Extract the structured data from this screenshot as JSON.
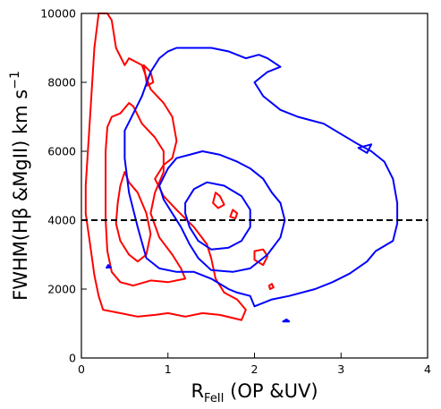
{
  "chart_data": {
    "type": "contour",
    "xlabel": "R",
    "xlabel_sub": "FeII",
    "xlabel_rest": " (OP &UV)",
    "ylabel": "FWHM(Hβ &MgII) km s",
    "ylabel_sup": "−1",
    "xlim": [
      0,
      4
    ],
    "ylim": [
      0,
      10000
    ],
    "xticks": [
      0,
      1,
      2,
      3,
      4
    ],
    "xtick_labels": [
      "0",
      "1",
      "2",
      "3",
      "4"
    ],
    "yticks": [
      0,
      2000,
      4000,
      6000,
      8000,
      10000
    ],
    "ytick_labels": [
      "0",
      "2000",
      "4000",
      "6000",
      "8000",
      "10000"
    ],
    "grid": false,
    "reference_line": {
      "y": 4000,
      "style": "dashed",
      "color": "#000000"
    },
    "colors": {
      "optical": "#ff0000",
      "uv": "#0000ff"
    },
    "series": [
      {
        "color": "#ff0000",
        "level": "outer",
        "points": [
          [
            0.05,
            5000
          ],
          [
            0.1,
            7000
          ],
          [
            0.15,
            9000
          ],
          [
            0.2,
            10000
          ],
          [
            0.3,
            10000
          ],
          [
            0.35,
            9800
          ],
          [
            0.4,
            9000
          ],
          [
            0.5,
            8500
          ],
          [
            0.55,
            8700
          ],
          [
            0.7,
            8500
          ],
          [
            0.8,
            7800
          ],
          [
            0.95,
            7400
          ],
          [
            1.05,
            7000
          ],
          [
            1.1,
            6300
          ],
          [
            1.05,
            5800
          ],
          [
            0.95,
            5600
          ],
          [
            0.85,
            5200
          ],
          [
            0.95,
            4700
          ],
          [
            1.1,
            4300
          ],
          [
            1.3,
            3800
          ],
          [
            1.45,
            3300
          ],
          [
            1.5,
            2900
          ],
          [
            1.55,
            2300
          ],
          [
            1.65,
            1900
          ],
          [
            1.8,
            1700
          ],
          [
            1.9,
            1400
          ],
          [
            1.85,
            1100
          ],
          [
            1.6,
            1250
          ],
          [
            1.4,
            1300
          ],
          [
            1.2,
            1200
          ],
          [
            1.0,
            1300
          ],
          [
            0.85,
            1250
          ],
          [
            0.65,
            1200
          ],
          [
            0.45,
            1300
          ],
          [
            0.25,
            1400
          ],
          [
            0.2,
            1800
          ],
          [
            0.15,
            2400
          ],
          [
            0.1,
            3300
          ],
          [
            0.05,
            4200
          ],
          [
            0.05,
            5000
          ]
        ]
      },
      {
        "color": "#ff0000",
        "level": "middle",
        "points": [
          [
            0.3,
            6700
          ],
          [
            0.35,
            7000
          ],
          [
            0.45,
            7100
          ],
          [
            0.55,
            7400
          ],
          [
            0.6,
            7300
          ],
          [
            0.7,
            6800
          ],
          [
            0.85,
            6400
          ],
          [
            0.95,
            6000
          ],
          [
            0.95,
            5400
          ],
          [
            0.85,
            4800
          ],
          [
            0.8,
            4200
          ],
          [
            0.9,
            3500
          ],
          [
            1.05,
            3000
          ],
          [
            1.15,
            2600
          ],
          [
            1.2,
            2300
          ],
          [
            1.0,
            2200
          ],
          [
            0.8,
            2250
          ],
          [
            0.6,
            2100
          ],
          [
            0.45,
            2200
          ],
          [
            0.35,
            2500
          ],
          [
            0.3,
            3100
          ],
          [
            0.28,
            4000
          ],
          [
            0.28,
            5000
          ],
          [
            0.28,
            6000
          ],
          [
            0.3,
            6700
          ]
        ]
      },
      {
        "color": "#ff0000",
        "level": "inner",
        "points": [
          [
            0.45,
            5000
          ],
          [
            0.5,
            5400
          ],
          [
            0.55,
            5100
          ],
          [
            0.65,
            4800
          ],
          [
            0.75,
            4200
          ],
          [
            0.8,
            3600
          ],
          [
            0.75,
            3000
          ],
          [
            0.65,
            2800
          ],
          [
            0.55,
            3000
          ],
          [
            0.45,
            3400
          ],
          [
            0.4,
            3900
          ],
          [
            0.42,
            4500
          ],
          [
            0.45,
            5000
          ]
        ]
      },
      {
        "color": "#ff0000",
        "level": "island",
        "points": [
          [
            1.55,
            4800
          ],
          [
            1.6,
            4700
          ],
          [
            1.65,
            4450
          ],
          [
            1.58,
            4350
          ],
          [
            1.52,
            4500
          ],
          [
            1.55,
            4800
          ]
        ]
      },
      {
        "color": "#ff0000",
        "level": "island",
        "points": [
          [
            1.75,
            4300
          ],
          [
            1.8,
            4200
          ],
          [
            1.78,
            4050
          ],
          [
            1.72,
            4100
          ],
          [
            1.75,
            4300
          ]
        ]
      },
      {
        "color": "#ff0000",
        "level": "island",
        "points": [
          [
            2.0,
            3100
          ],
          [
            2.1,
            3150
          ],
          [
            2.15,
            2950
          ],
          [
            2.1,
            2700
          ],
          [
            2.0,
            2850
          ],
          [
            2.0,
            3100
          ]
        ]
      },
      {
        "color": "#ff0000",
        "level": "island",
        "points": [
          [
            0.72,
            8500
          ],
          [
            0.8,
            8300
          ],
          [
            0.83,
            8000
          ],
          [
            0.76,
            7900
          ],
          [
            0.72,
            8500
          ]
        ]
      },
      {
        "color": "#ff0000",
        "level": "island",
        "points": [
          [
            2.17,
            2100
          ],
          [
            2.2,
            2150
          ],
          [
            2.22,
            2050
          ],
          [
            2.18,
            2000
          ],
          [
            2.17,
            2100
          ]
        ]
      },
      {
        "color": "#0000ff",
        "level": "outer",
        "points": [
          [
            0.5,
            6600
          ],
          [
            0.6,
            7100
          ],
          [
            0.7,
            7600
          ],
          [
            0.8,
            8300
          ],
          [
            0.9,
            8700
          ],
          [
            1.0,
            8900
          ],
          [
            1.1,
            9000
          ],
          [
            1.3,
            9000
          ],
          [
            1.5,
            9000
          ],
          [
            1.7,
            8900
          ],
          [
            1.9,
            8700
          ],
          [
            2.05,
            8800
          ],
          [
            2.15,
            8700
          ],
          [
            2.3,
            8450
          ],
          [
            2.15,
            8300
          ],
          [
            2.0,
            8000
          ],
          [
            2.1,
            7600
          ],
          [
            2.3,
            7200
          ],
          [
            2.5,
            7000
          ],
          [
            2.65,
            6900
          ],
          [
            2.8,
            6800
          ],
          [
            3.0,
            6500
          ],
          [
            3.2,
            6200
          ],
          [
            3.35,
            6000
          ],
          [
            3.5,
            5700
          ],
          [
            3.6,
            5200
          ],
          [
            3.65,
            4500
          ],
          [
            3.65,
            3900
          ],
          [
            3.6,
            3400
          ],
          [
            3.4,
            3100
          ],
          [
            3.3,
            2800
          ],
          [
            3.1,
            2450
          ],
          [
            2.9,
            2200
          ],
          [
            2.7,
            2000
          ],
          [
            2.4,
            1800
          ],
          [
            2.2,
            1700
          ],
          [
            2.0,
            1500
          ],
          [
            1.95,
            1800
          ],
          [
            1.8,
            1900
          ],
          [
            1.7,
            2000
          ],
          [
            1.5,
            2300
          ],
          [
            1.3,
            2500
          ],
          [
            1.1,
            2500
          ],
          [
            0.9,
            2600
          ],
          [
            0.75,
            2900
          ],
          [
            0.65,
            3800
          ],
          [
            0.55,
            4800
          ],
          [
            0.5,
            5800
          ],
          [
            0.5,
            6600
          ]
        ]
      },
      {
        "color": "#0000ff",
        "level": "middle",
        "points": [
          [
            0.9,
            5000
          ],
          [
            1.0,
            5500
          ],
          [
            1.1,
            5800
          ],
          [
            1.25,
            5900
          ],
          [
            1.4,
            6000
          ],
          [
            1.6,
            5900
          ],
          [
            1.8,
            5700
          ],
          [
            1.95,
            5500
          ],
          [
            2.1,
            5200
          ],
          [
            2.2,
            4800
          ],
          [
            2.3,
            4500
          ],
          [
            2.35,
            4000
          ],
          [
            2.3,
            3500
          ],
          [
            2.15,
            3000
          ],
          [
            1.95,
            2600
          ],
          [
            1.75,
            2500
          ],
          [
            1.5,
            2550
          ],
          [
            1.35,
            2900
          ],
          [
            1.25,
            3300
          ],
          [
            1.15,
            3800
          ],
          [
            1.05,
            4200
          ],
          [
            0.95,
            4600
          ],
          [
            0.9,
            5000
          ]
        ]
      },
      {
        "color": "#0000ff",
        "level": "inner",
        "points": [
          [
            1.2,
            4500
          ],
          [
            1.3,
            4900
          ],
          [
            1.45,
            5100
          ],
          [
            1.65,
            5000
          ],
          [
            1.85,
            4700
          ],
          [
            1.95,
            4300
          ],
          [
            1.95,
            3800
          ],
          [
            1.85,
            3400
          ],
          [
            1.7,
            3200
          ],
          [
            1.5,
            3150
          ],
          [
            1.35,
            3400
          ],
          [
            1.25,
            3800
          ],
          [
            1.2,
            4200
          ],
          [
            1.2,
            4500
          ]
        ]
      },
      {
        "color": "#0000ff",
        "level": "island",
        "points": [
          [
            3.2,
            6100
          ],
          [
            3.35,
            6200
          ],
          [
            3.3,
            5950
          ],
          [
            3.2,
            6100
          ]
        ]
      },
      {
        "color": "#0000ff",
        "level": "island",
        "points": [
          [
            2.33,
            1060
          ],
          [
            2.37,
            1120
          ],
          [
            2.4,
            1060
          ],
          [
            2.33,
            1060
          ]
        ]
      },
      {
        "color": "#0000ff",
        "level": "island",
        "points": [
          [
            0.29,
            2620
          ],
          [
            0.31,
            2700
          ],
          [
            0.34,
            2630
          ],
          [
            0.29,
            2620
          ]
        ]
      }
    ]
  }
}
